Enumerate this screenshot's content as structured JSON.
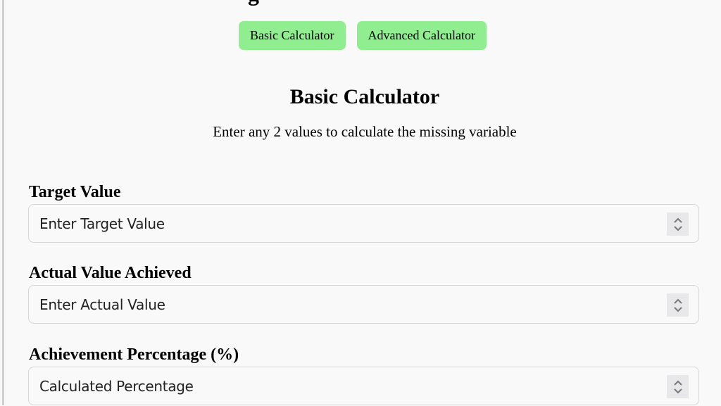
{
  "page": {
    "title_fragment": "g"
  },
  "tabs": [
    {
      "label": "Basic Calculator"
    },
    {
      "label": "Advanced Calculator"
    }
  ],
  "section": {
    "title": "Basic Calculator",
    "subtitle": "Enter any 2 values to calculate the missing variable"
  },
  "fields": [
    {
      "label": "Target Value",
      "placeholder": "Enter Target Value"
    },
    {
      "label": "Actual Value Achieved",
      "placeholder": "Enter Actual Value"
    },
    {
      "label": "Achievement Percentage (%)",
      "placeholder": "Calculated Percentage"
    }
  ],
  "colors": {
    "tab_bg": "#90ee90",
    "background": "#f9f9f9"
  }
}
